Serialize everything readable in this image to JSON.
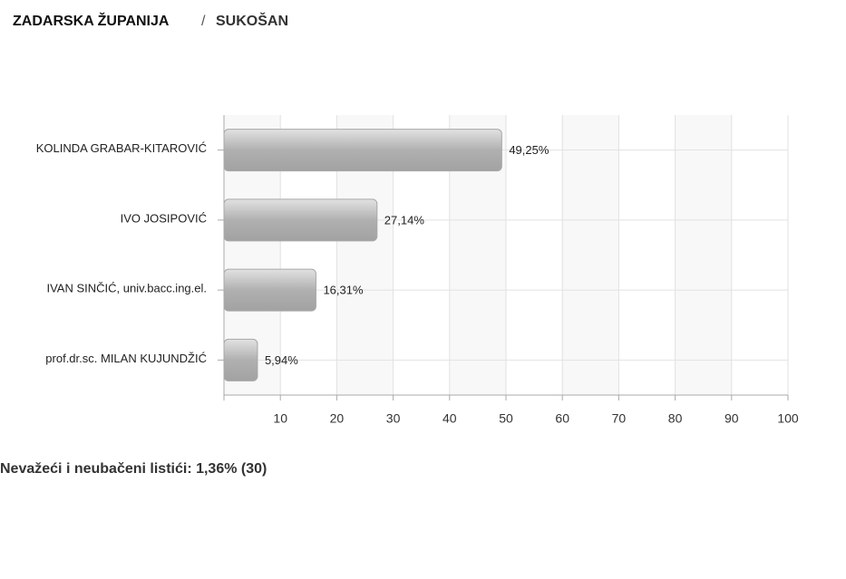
{
  "header": {
    "region": "ZADARSKA ŽUPANIJA",
    "separator": "/",
    "place": "SUKOŠAN"
  },
  "chart_data": {
    "type": "hbar",
    "categories": [
      "KOLINDA GRABAR-KITAROVIĆ",
      "IVO JOSIPOVIĆ",
      "IVAN SINČIĆ, univ.bacc.ing.el.",
      "prof.dr.sc. MILAN KUJUNDŽIĆ"
    ],
    "values": [
      49.25,
      27.14,
      16.31,
      5.94
    ],
    "value_labels": [
      "49,25%",
      "27,14%",
      "16,31%",
      "5,94%"
    ],
    "color": "#b4b4b4",
    "xlim": [
      0,
      100
    ],
    "xticks": [
      10,
      20,
      30,
      40,
      50,
      60,
      70,
      80,
      90,
      100
    ],
    "grid": true
  },
  "footer": "Nevažeći i neubačeni listići: 1,36% (30)"
}
